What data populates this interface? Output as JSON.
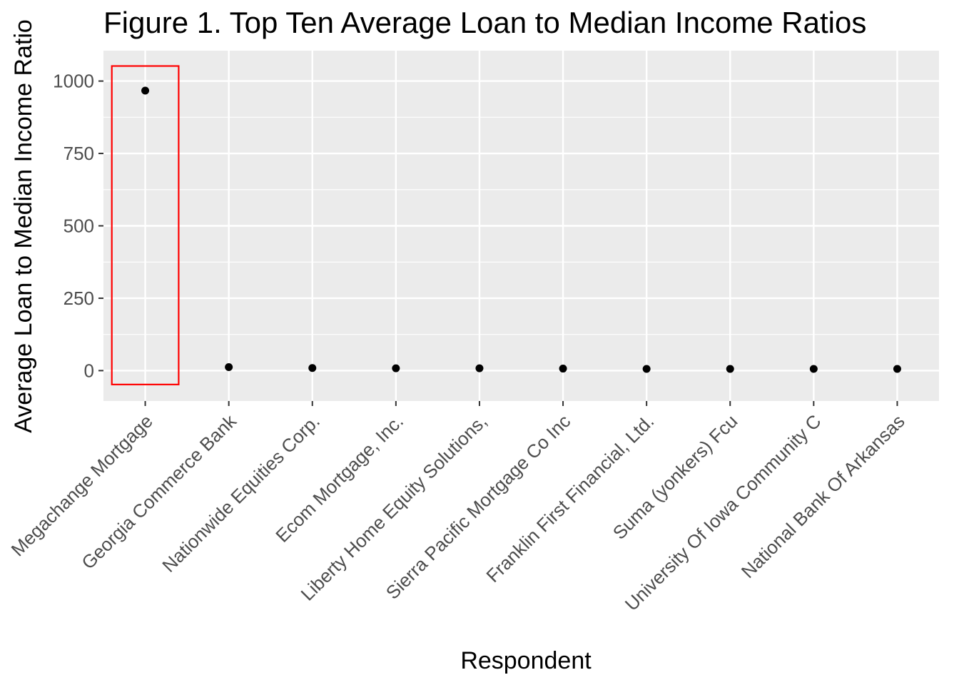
{
  "chart_data": {
    "type": "scatter",
    "title": "Figure 1. Top Ten Average Loan to Median Income Ratios",
    "xlabel": "Respondent",
    "ylabel": "Average Loan to Median Income Ratio",
    "categories": [
      "Megachange Mortgage",
      "Georgia Commerce Bank",
      "Nationwide Equities Corp.",
      "Ecom Mortgage, Inc.",
      "Liberty Home Equity Solutions,",
      "Sierra Pacific Mortgage Co Inc",
      "Franklin First Financial, Ltd.",
      "Suma (yonkers) Fcu",
      "University Of Iowa Community C",
      "National Bank Of Arkansas"
    ],
    "values": [
      967,
      12,
      9,
      8,
      8,
      7,
      6,
      6,
      6,
      6
    ],
    "ylim": [
      -105,
      1105
    ],
    "yticks": [
      0,
      250,
      500,
      750,
      1000
    ],
    "grid": true,
    "panel_background": "#ebebeb",
    "gridline_color": "#ffffff",
    "point_color": "#000000",
    "highlight": {
      "category": "Megachange Mortgage",
      "y_range": [
        -48,
        1052
      ],
      "color": "#ff0000"
    }
  }
}
